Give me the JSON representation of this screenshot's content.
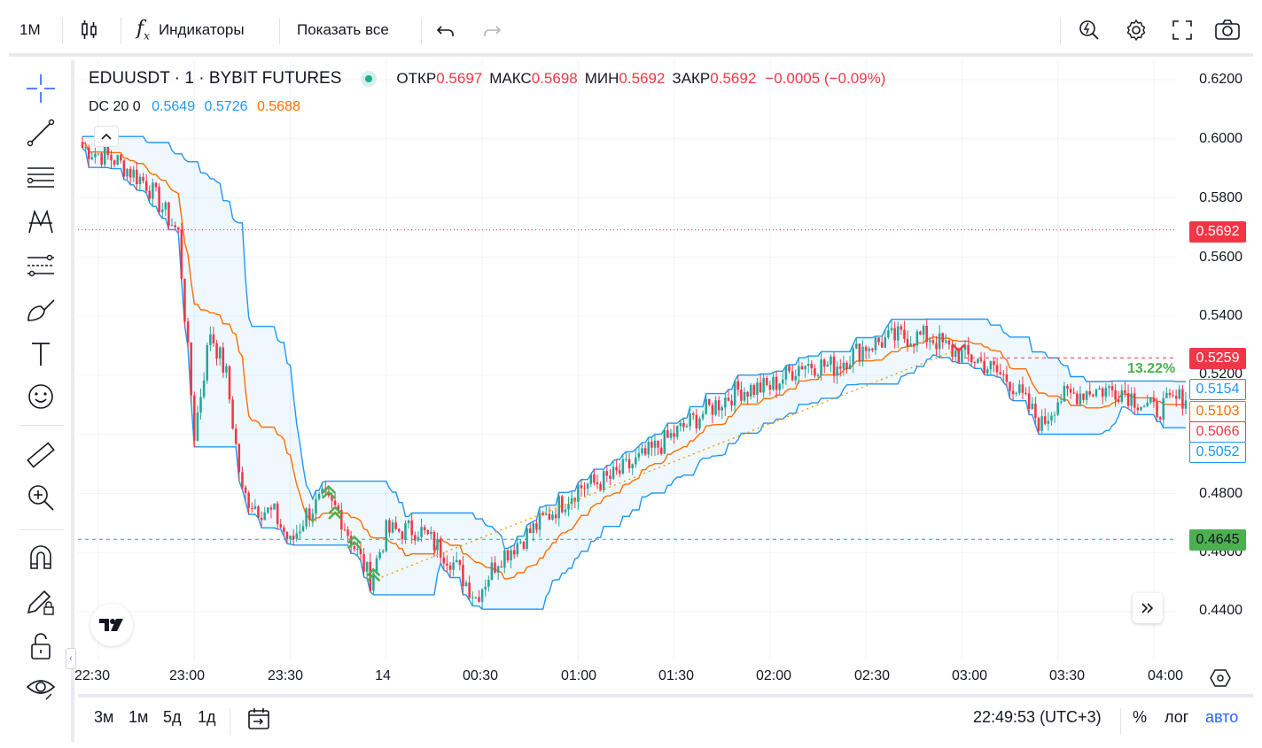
{
  "toolbar": {
    "interval": "1M",
    "indicators_label": "Индикаторы",
    "show_all_label": "Показать все"
  },
  "legend": {
    "symbol": "EDUUSDT · 1 · BYBIT FUTURES",
    "open_label": "ОТКР",
    "open": "0.5697",
    "high_label": "МАКС",
    "high": "0.5698",
    "low_label": "МИН",
    "low": "0.5692",
    "close_label": "ЗАКР",
    "close": "0.5692",
    "change": "−0.0005 (−0.09%)",
    "indicator_name": "DC 20 0",
    "dc_lower": "0.5649",
    "dc_upper": "0.5726",
    "dc_mid": "0.5688"
  },
  "price_axis": {
    "ticks": [
      "0.6200",
      "0.6000",
      "0.5800",
      "0.5600",
      "0.5400",
      "0.5200",
      "0.4800",
      "0.4600",
      "0.4400"
    ],
    "tags": {
      "last_price": "0.5692",
      "position_top": "0.5259",
      "dc_upper": "0.5154",
      "dc_mid": "0.5103",
      "position_close": "0.5066",
      "dc_lower": "0.5052",
      "entry_price": "0.4645"
    },
    "percent_label": "13.22%"
  },
  "time_axis": {
    "ticks": [
      "22:30",
      "23:00",
      "23:30",
      "14",
      "00:30",
      "01:00",
      "01:30",
      "02:00",
      "02:30",
      "03:00",
      "03:30",
      "04:00"
    ]
  },
  "bottom": {
    "ranges": [
      "3м",
      "1м",
      "5д",
      "1д"
    ],
    "clock": "22:49:53 (UTC+3)",
    "percent": "%",
    "log": "лог",
    "auto": "авто"
  },
  "colors": {
    "up": "#26a69a",
    "down": "#f23645",
    "dc_band": "#2196f3",
    "dc_mid": "#ff6d00",
    "fill": "rgba(33,150,243,0.07)",
    "accent_blue": "#2962ff"
  },
  "chart_data": {
    "type": "candlestick",
    "title": "EDUUSDT · 1 · BYBIT FUTURES",
    "xlabel": "",
    "ylabel": "",
    "time_range": [
      "22:25",
      "04:10"
    ],
    "ylim": [
      0.425,
      0.625
    ],
    "price_path": [
      [
        "22:25",
        0.597
      ],
      [
        "22:35",
        0.593
      ],
      [
        "22:45",
        0.585
      ],
      [
        "22:55",
        0.568
      ],
      [
        "23:00",
        0.5
      ],
      [
        "23:05",
        0.535
      ],
      [
        "23:10",
        0.52
      ],
      [
        "23:15",
        0.48
      ],
      [
        "23:20",
        0.475
      ],
      [
        "23:25",
        0.473
      ],
      [
        "23:30",
        0.463
      ],
      [
        "23:35",
        0.473
      ],
      [
        "23:40",
        0.478
      ],
      [
        "23:45",
        0.474
      ],
      [
        "23:50",
        0.462
      ],
      [
        "23:55",
        0.451
      ],
      [
        "00:00",
        0.467
      ],
      [
        "00:10",
        0.468
      ],
      [
        "00:20",
        0.458
      ],
      [
        "00:28",
        0.445
      ],
      [
        "00:35",
        0.458
      ],
      [
        "00:45",
        0.467
      ],
      [
        "01:00",
        0.482
      ],
      [
        "01:10",
        0.485
      ],
      [
        "01:20",
        0.492
      ],
      [
        "01:30",
        0.5
      ],
      [
        "01:40",
        0.508
      ],
      [
        "01:50",
        0.515
      ],
      [
        "02:00",
        0.516
      ],
      [
        "02:10",
        0.524
      ],
      [
        "02:20",
        0.523
      ],
      [
        "02:30",
        0.53
      ],
      [
        "02:40",
        0.533
      ],
      [
        "02:50",
        0.533
      ],
      [
        "02:57",
        0.528
      ],
      [
        "03:05",
        0.525
      ],
      [
        "03:15",
        0.518
      ],
      [
        "03:25",
        0.503
      ],
      [
        "03:30",
        0.512
      ],
      [
        "03:40",
        0.515
      ],
      [
        "03:50",
        0.515
      ],
      [
        "04:00",
        0.508
      ],
      [
        "04:10",
        0.513
      ]
    ],
    "series": [
      {
        "name": "DC 20 0",
        "values": [
          0.5649,
          0.5726,
          0.5688
        ]
      }
    ],
    "lines": {
      "last_price": 0.5692,
      "entry": 0.4645,
      "target": 0.5259
    }
  }
}
